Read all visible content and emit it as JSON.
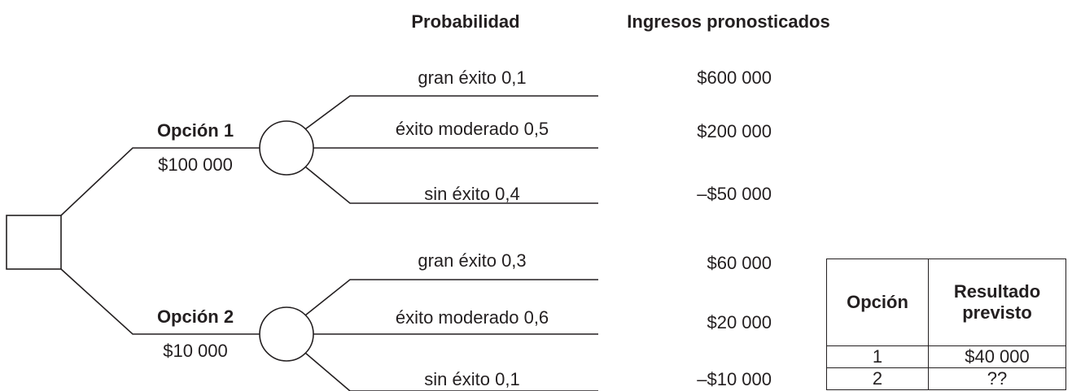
{
  "headers": {
    "probability": "Probabilidad",
    "revenue": "Ingresos pronosticados"
  },
  "options": [
    {
      "label": "Opción 1",
      "cost": "$100 000",
      "outcomes": [
        {
          "label": "gran éxito 0,1",
          "revenue": "$600 000"
        },
        {
          "label": "éxito moderado 0,5",
          "revenue": "$200 000"
        },
        {
          "label": "sin éxito 0,4",
          "revenue": "–$50 000"
        }
      ]
    },
    {
      "label": "Opción 2",
      "cost": "$10 000",
      "outcomes": [
        {
          "label": "gran éxito 0,3",
          "revenue": "$60 000"
        },
        {
          "label": "éxito moderado 0,6",
          "revenue": "$20 000"
        },
        {
          "label": "sin éxito 0,1",
          "revenue": "–$10 000"
        }
      ]
    }
  ],
  "table": {
    "columns": [
      "Opción",
      "Resultado previsto"
    ],
    "rows": [
      [
        "1",
        "$40 000"
      ],
      [
        "2",
        "??"
      ]
    ]
  }
}
